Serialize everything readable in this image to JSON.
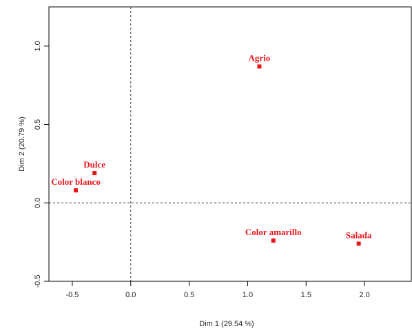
{
  "chart_data": {
    "type": "scatter",
    "title": "",
    "xlabel": "Dim 1 (29.54 %)",
    "ylabel": "Dim 2 (20.79 %)",
    "xlim": [
      -0.7,
      2.4
    ],
    "ylim": [
      -0.5,
      1.25
    ],
    "xticks": [
      {
        "value": -0.5,
        "label": "-0.5"
      },
      {
        "value": 0.0,
        "label": "0.0"
      },
      {
        "value": 0.5,
        "label": "0.5"
      },
      {
        "value": 1.0,
        "label": "1.0"
      },
      {
        "value": 1.5,
        "label": "1.5"
      },
      {
        "value": 2.0,
        "label": "2.0"
      }
    ],
    "yticks": [
      {
        "value": -0.5,
        "label": "-0.5"
      },
      {
        "value": 0.0,
        "label": "0.0"
      },
      {
        "value": 0.5,
        "label": "0.5"
      },
      {
        "value": 1.0,
        "label": "1.0"
      }
    ],
    "reference_lines": {
      "x": 0,
      "y": 0
    },
    "point_color": "#e8141b",
    "points": [
      {
        "label": "Agrio",
        "x": 1.1,
        "y": 0.87
      },
      {
        "label": "Dulce",
        "x": -0.31,
        "y": 0.19
      },
      {
        "label": "Color blanco",
        "x": -0.47,
        "y": 0.08
      },
      {
        "label": "Color amarillo",
        "x": 1.22,
        "y": -0.24
      },
      {
        "label": "Salada",
        "x": 1.95,
        "y": -0.26
      }
    ],
    "grid": false
  }
}
